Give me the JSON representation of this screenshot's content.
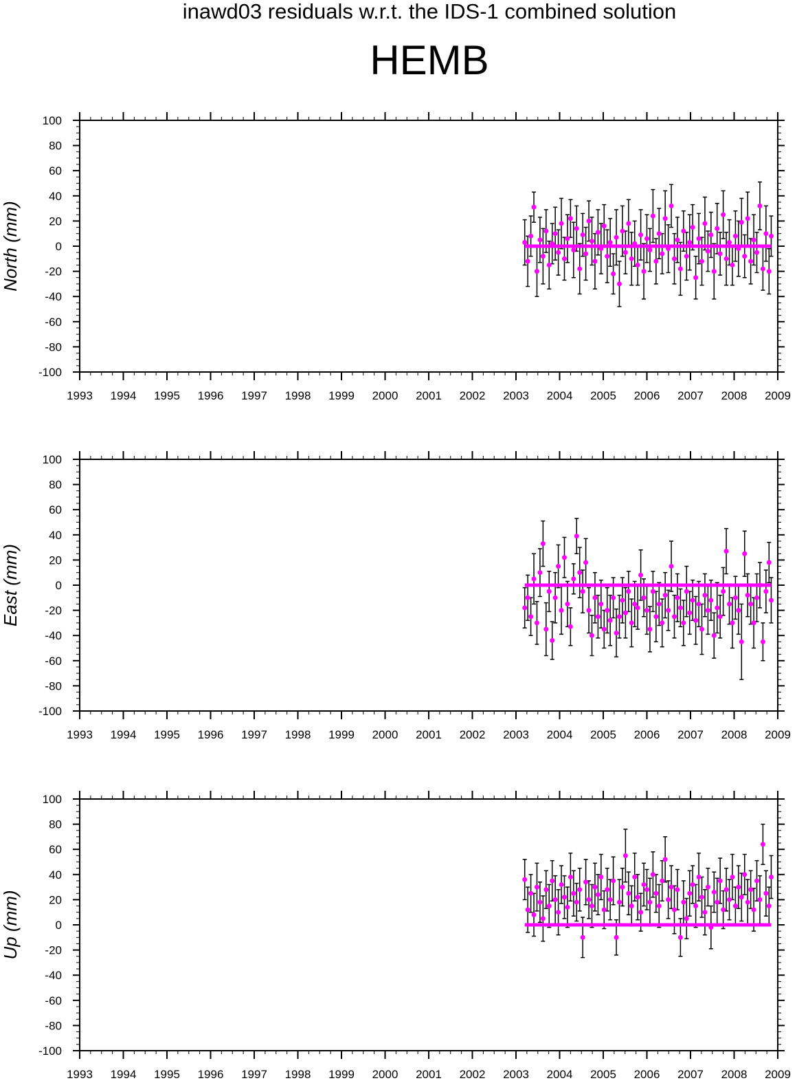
{
  "header": {
    "title": "inawd03 residuals w.r.t. the IDS-1 combined solution",
    "station": "HEMB"
  },
  "colors": {
    "points": "#ff00ff",
    "error_bars": "#000000",
    "axes": "#000000",
    "background": "#ffffff"
  },
  "chart_data": [
    {
      "type": "scatter",
      "title": "",
      "xlabel": "",
      "ylabel": "North (mm)",
      "xlim": [
        1993,
        2009
      ],
      "ylim": [
        -100,
        100
      ],
      "xticks": [
        "1993",
        "1994",
        "1995",
        "1996",
        "1997",
        "1998",
        "1999",
        "2000",
        "2001",
        "2002",
        "2003",
        "2004",
        "2005",
        "2006",
        "2007",
        "2008",
        "2009"
      ],
      "yticks": [
        "100",
        "80",
        "60",
        "40",
        "20",
        "0",
        "-20",
        "-40",
        "-60",
        "-80",
        "-100"
      ],
      "grid": false,
      "error_bars": true,
      "reference_line": 0,
      "series": [
        {
          "x": [
            2003.2,
            2003.27,
            2003.34,
            2003.41,
            2003.48,
            2003.55,
            2003.62,
            2003.69,
            2003.76,
            2003.83,
            2003.9,
            2003.97,
            2004.04,
            2004.11,
            2004.18,
            2004.25,
            2004.32,
            2004.39,
            2004.46,
            2004.53,
            2004.6,
            2004.67,
            2004.74,
            2004.81,
            2004.88,
            2004.95,
            2005.02,
            2005.09,
            2005.16,
            2005.23,
            2005.3,
            2005.37,
            2005.44,
            2005.51,
            2005.58,
            2005.65,
            2005.72,
            2005.79,
            2005.86,
            2005.93,
            2006.0,
            2006.07,
            2006.14,
            2006.21,
            2006.28,
            2006.35,
            2006.42,
            2006.49,
            2006.56,
            2006.63,
            2006.7,
            2006.77,
            2006.84,
            2006.91,
            2006.98,
            2007.05,
            2007.12,
            2007.19,
            2007.26,
            2007.33,
            2007.4,
            2007.47,
            2007.54,
            2007.61,
            2007.68,
            2007.75,
            2007.82,
            2007.89,
            2007.96,
            2008.03,
            2008.1,
            2008.17,
            2008.24,
            2008.31,
            2008.38,
            2008.45,
            2008.52,
            2008.59,
            2008.66,
            2008.73,
            2008.8,
            2008.85
          ],
          "y": [
            3,
            -12,
            8,
            31,
            -20,
            5,
            -8,
            12,
            -15,
            2,
            10,
            -5,
            18,
            -10,
            6,
            22,
            -3,
            14,
            -18,
            9,
            -6,
            20,
            4,
            -12,
            11,
            -2,
            16,
            -8,
            3,
            -22,
            7,
            -30,
            12,
            -5,
            18,
            -10,
            2,
            -15,
            9,
            -20,
            6,
            -3,
            24,
            -12,
            10,
            -6,
            22,
            -2,
            32,
            -10,
            5,
            -18,
            12,
            -8,
            3,
            15,
            -25,
            6,
            -12,
            18,
            -4,
            9,
            -20,
            14,
            -6,
            25,
            -10,
            3,
            -15,
            8,
            -2,
            19,
            -8,
            22,
            -12,
            5,
            -5,
            32,
            -18,
            10,
            -20,
            8
          ],
          "err": [
            18,
            20,
            16,
            12,
            20,
            18,
            22,
            17,
            19,
            16,
            21,
            18,
            20,
            17,
            19,
            15,
            22,
            18,
            20,
            17,
            21,
            16,
            19,
            22,
            18,
            20,
            17,
            21,
            19,
            16,
            22,
            18,
            20,
            17,
            19,
            21,
            18,
            16,
            20,
            22,
            19,
            17,
            21,
            18,
            20,
            16,
            22,
            19,
            17,
            20,
            18,
            21,
            16,
            19,
            22,
            18,
            17,
            20,
            19,
            21,
            16,
            18,
            22,
            20,
            17,
            19,
            21,
            18,
            16,
            20,
            22,
            19,
            17,
            21,
            18,
            20,
            16,
            19,
            17,
            22,
            18,
            16
          ]
        }
      ]
    },
    {
      "type": "scatter",
      "title": "",
      "xlabel": "",
      "ylabel": "East (mm)",
      "xlim": [
        1993,
        2009
      ],
      "ylim": [
        -100,
        100
      ],
      "xticks": [
        "1993",
        "1994",
        "1995",
        "1996",
        "1997",
        "1998",
        "1999",
        "2000",
        "2001",
        "2002",
        "2003",
        "2004",
        "2005",
        "2006",
        "2007",
        "2008",
        "2009"
      ],
      "yticks": [
        "100",
        "80",
        "60",
        "40",
        "20",
        "0",
        "-20",
        "-40",
        "-60",
        "-80",
        "-100"
      ],
      "grid": false,
      "error_bars": true,
      "reference_line": 0,
      "series": [
        {
          "x": [
            2003.2,
            2003.27,
            2003.34,
            2003.41,
            2003.48,
            2003.55,
            2003.62,
            2003.69,
            2003.76,
            2003.83,
            2003.9,
            2003.97,
            2004.04,
            2004.11,
            2004.18,
            2004.25,
            2004.32,
            2004.39,
            2004.46,
            2004.53,
            2004.6,
            2004.67,
            2004.74,
            2004.81,
            2004.88,
            2004.95,
            2005.02,
            2005.09,
            2005.16,
            2005.23,
            2005.3,
            2005.37,
            2005.44,
            2005.51,
            2005.58,
            2005.65,
            2005.72,
            2005.79,
            2005.86,
            2005.93,
            2006.0,
            2006.07,
            2006.14,
            2006.21,
            2006.28,
            2006.35,
            2006.42,
            2006.49,
            2006.56,
            2006.63,
            2006.7,
            2006.77,
            2006.84,
            2006.91,
            2006.98,
            2007.05,
            2007.12,
            2007.19,
            2007.26,
            2007.33,
            2007.4,
            2007.47,
            2007.54,
            2007.61,
            2007.68,
            2007.75,
            2007.82,
            2007.89,
            2007.96,
            2008.03,
            2008.1,
            2008.17,
            2008.24,
            2008.31,
            2008.38,
            2008.45,
            2008.52,
            2008.59,
            2008.66,
            2008.73,
            2008.8,
            2008.85
          ],
          "y": [
            -18,
            -10,
            -25,
            5,
            -30,
            10,
            33,
            -35,
            -5,
            -44,
            -10,
            15,
            -20,
            22,
            -15,
            -33,
            5,
            39,
            10,
            -5,
            18,
            -20,
            -40,
            -10,
            -25,
            -15,
            -35,
            -20,
            -28,
            -10,
            -38,
            -25,
            -12,
            -22,
            -5,
            -30,
            -15,
            -18,
            8,
            -10,
            -20,
            -35,
            -5,
            -25,
            -15,
            -30,
            -8,
            -20,
            15,
            -25,
            -10,
            -18,
            -30,
            -5,
            -22,
            -12,
            -28,
            -15,
            -35,
            -8,
            -20,
            -12,
            -40,
            -18,
            -25,
            -5,
            27,
            -15,
            -30,
            -10,
            -20,
            -45,
            25,
            -8,
            -15,
            -30,
            -10,
            0,
            -45,
            -5,
            18,
            -12
          ],
          "err": [
            16,
            18,
            15,
            20,
            17,
            19,
            18,
            21,
            16,
            15,
            20,
            17,
            19,
            16,
            18,
            15,
            12,
            14,
            20,
            17,
            19,
            18,
            16,
            20,
            17,
            19,
            15,
            18,
            20,
            16,
            19,
            17,
            18,
            20,
            16,
            19,
            18,
            17,
            20,
            15,
            19,
            18,
            16,
            20,
            17,
            19,
            18,
            16,
            20,
            17,
            19,
            15,
            18,
            20,
            17,
            16,
            19,
            18,
            20,
            17,
            19,
            16,
            18,
            20,
            17,
            19,
            18,
            16,
            20,
            17,
            19,
            30,
            18,
            17,
            16,
            20,
            19,
            18,
            15,
            17,
            16,
            18
          ]
        }
      ]
    },
    {
      "type": "scatter",
      "title": "",
      "xlabel": "",
      "ylabel": "Up (mm)",
      "xlim": [
        1993,
        2009
      ],
      "ylim": [
        -100,
        100
      ],
      "xticks": [
        "1993",
        "1994",
        "1995",
        "1996",
        "1997",
        "1998",
        "1999",
        "2000",
        "2001",
        "2002",
        "2003",
        "2004",
        "2005",
        "2006",
        "2007",
        "2008",
        "2009"
      ],
      "yticks": [
        "100",
        "80",
        "60",
        "40",
        "20",
        "0",
        "-20",
        "-40",
        "-60",
        "-80",
        "-100"
      ],
      "grid": false,
      "error_bars": true,
      "reference_line": 0,
      "series": [
        {
          "x": [
            2003.2,
            2003.27,
            2003.34,
            2003.41,
            2003.48,
            2003.55,
            2003.62,
            2003.69,
            2003.76,
            2003.83,
            2003.9,
            2003.97,
            2004.04,
            2004.11,
            2004.18,
            2004.25,
            2004.32,
            2004.39,
            2004.46,
            2004.53,
            2004.6,
            2004.67,
            2004.74,
            2004.81,
            2004.88,
            2004.95,
            2005.02,
            2005.09,
            2005.16,
            2005.23,
            2005.3,
            2005.37,
            2005.44,
            2005.51,
            2005.58,
            2005.65,
            2005.72,
            2005.79,
            2005.86,
            2005.93,
            2006.0,
            2006.07,
            2006.14,
            2006.21,
            2006.28,
            2006.35,
            2006.42,
            2006.49,
            2006.56,
            2006.63,
            2006.7,
            2006.77,
            2006.84,
            2006.91,
            2006.98,
            2007.05,
            2007.12,
            2007.19,
            2007.26,
            2007.33,
            2007.4,
            2007.47,
            2007.54,
            2007.61,
            2007.68,
            2007.75,
            2007.82,
            2007.89,
            2007.96,
            2008.03,
            2008.1,
            2008.17,
            2008.24,
            2008.31,
            2008.38,
            2008.45,
            2008.52,
            2008.59,
            2008.66,
            2008.73,
            2008.8,
            2008.85
          ],
          "y": [
            36,
            12,
            25,
            8,
            30,
            18,
            5,
            28,
            15,
            35,
            20,
            10,
            32,
            22,
            14,
            38,
            25,
            18,
            28,
            -10,
            34,
            20,
            15,
            30,
            24,
            38,
            12,
            28,
            20,
            35,
            -10,
            18,
            30,
            55,
            25,
            15,
            38,
            22,
            10,
            32,
            28,
            18,
            40,
            25,
            15,
            35,
            52,
            20,
            30,
            12,
            28,
            -10,
            18,
            5,
            25,
            32,
            15,
            38,
            22,
            10,
            30,
            -2,
            26,
            18,
            35,
            12,
            28,
            20,
            38,
            15,
            30,
            22,
            40,
            18,
            28,
            12,
            35,
            20,
            64,
            25,
            15,
            38
          ],
          "err": [
            16,
            18,
            15,
            17,
            19,
            16,
            18,
            15,
            17,
            16,
            19,
            18,
            15,
            17,
            16,
            19,
            18,
            15,
            17,
            16,
            18,
            15,
            17,
            19,
            16,
            18,
            15,
            17,
            16,
            19,
            14,
            18,
            15,
            21,
            17,
            16,
            19,
            18,
            15,
            17,
            16,
            19,
            18,
            15,
            17,
            16,
            18,
            15,
            17,
            19,
            16,
            15,
            17,
            16,
            18,
            15,
            17,
            19,
            16,
            18,
            15,
            17,
            16,
            19,
            18,
            15,
            17,
            16,
            18,
            15,
            17,
            19,
            16,
            18,
            15,
            17,
            16,
            19,
            16,
            18,
            15,
            17
          ]
        }
      ]
    }
  ]
}
